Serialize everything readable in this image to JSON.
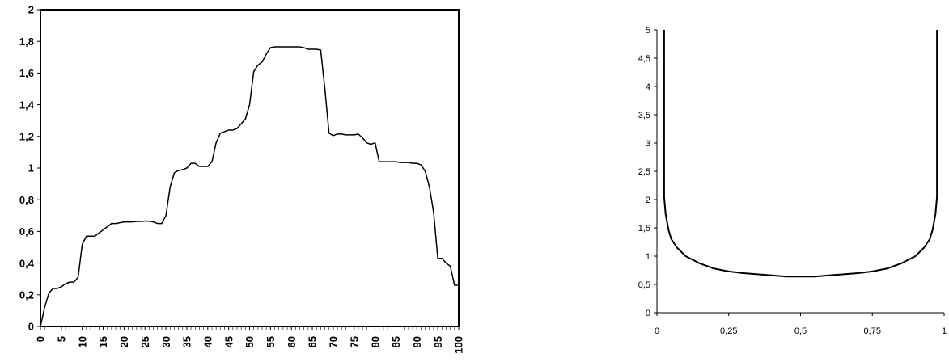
{
  "chart_data": [
    {
      "type": "line",
      "xlim": [
        0,
        100
      ],
      "ylim": [
        0,
        2
      ],
      "grid": false,
      "x_ticks": [
        "0",
        "5",
        "10",
        "15",
        "20",
        "25",
        "30",
        "35",
        "40",
        "45",
        "50",
        "55",
        "60",
        "65",
        "70",
        "75",
        "80",
        "85",
        "90",
        "95",
        "100"
      ],
      "y_ticks": [
        "0",
        "0,2",
        "0,4",
        "0,6",
        "0,8",
        "1",
        "1,2",
        "1,4",
        "1,6",
        "1,8",
        "2"
      ],
      "series": [
        {
          "x": [
            0,
            1,
            2,
            3,
            4,
            5,
            6,
            7,
            8,
            9,
            10,
            11,
            12,
            13,
            14,
            15,
            16,
            17,
            18,
            19,
            20,
            21,
            22,
            23,
            24,
            25,
            26,
            27,
            28,
            29,
            30,
            31,
            32,
            33,
            34,
            35,
            36,
            37,
            38,
            39,
            40,
            41,
            42,
            43,
            44,
            45,
            46,
            47,
            48,
            49,
            50,
            51,
            52,
            53,
            54,
            55,
            56,
            57,
            58,
            59,
            60,
            61,
            62,
            63,
            64,
            65,
            66,
            67,
            68,
            69,
            70,
            71,
            72,
            73,
            74,
            75,
            76,
            77,
            78,
            79,
            80,
            81,
            82,
            83,
            84,
            85,
            86,
            87,
            88,
            89,
            90,
            91,
            92,
            93,
            94,
            95,
            96,
            97,
            98,
            99,
            100
          ],
          "y": [
            0,
            0.12,
            0.21,
            0.24,
            0.24,
            0.25,
            0.27,
            0.28,
            0.28,
            0.31,
            0.52,
            0.57,
            0.57,
            0.57,
            0.59,
            0.61,
            0.63,
            0.65,
            0.65,
            0.655,
            0.66,
            0.66,
            0.66,
            0.663,
            0.663,
            0.665,
            0.665,
            0.66,
            0.65,
            0.65,
            0.7,
            0.88,
            0.97,
            0.985,
            0.99,
            1.0,
            1.03,
            1.03,
            1.01,
            1.01,
            1.01,
            1.04,
            1.16,
            1.22,
            1.23,
            1.24,
            1.24,
            1.25,
            1.28,
            1.31,
            1.4,
            1.61,
            1.65,
            1.67,
            1.72,
            1.76,
            1.765,
            1.765,
            1.765,
            1.765,
            1.765,
            1.765,
            1.765,
            1.76,
            1.75,
            1.75,
            1.75,
            1.745,
            1.5,
            1.22,
            1.205,
            1.215,
            1.215,
            1.21,
            1.21,
            1.21,
            1.215,
            1.19,
            1.16,
            1.15,
            1.16,
            1.04,
            1.04,
            1.04,
            1.04,
            1.04,
            1.035,
            1.035,
            1.035,
            1.03,
            1.03,
            1.02,
            0.98,
            0.88,
            0.72,
            0.43,
            0.43,
            0.4,
            0.38,
            0.26,
            0.26
          ]
        }
      ]
    },
    {
      "type": "line",
      "xlim": [
        0,
        1
      ],
      "ylim": [
        0,
        5
      ],
      "grid": false,
      "x_ticks": [
        "0",
        "0,25",
        "0,5",
        "0,75",
        "1"
      ],
      "y_ticks": [
        "0",
        "0,5",
        "1",
        "1,5",
        "2",
        "2,5",
        "3",
        "3,5",
        "4",
        "4,5",
        "5"
      ],
      "series": [
        {
          "x": [
            0.025,
            0.025,
            0.03,
            0.04,
            0.05,
            0.07,
            0.1,
            0.15,
            0.2,
            0.25,
            0.3,
            0.35,
            0.4,
            0.45,
            0.5,
            0.55,
            0.6,
            0.65,
            0.7,
            0.75,
            0.8,
            0.85,
            0.9,
            0.93,
            0.95,
            0.96,
            0.97,
            0.975,
            0.975
          ],
          "y": [
            5,
            2.05,
            1.75,
            1.47,
            1.3,
            1.15,
            1.0,
            0.87,
            0.78,
            0.73,
            0.7,
            0.68,
            0.66,
            0.64,
            0.64,
            0.64,
            0.66,
            0.68,
            0.7,
            0.73,
            0.78,
            0.87,
            1.0,
            1.15,
            1.3,
            1.47,
            1.75,
            2.05,
            5
          ]
        }
      ]
    }
  ]
}
